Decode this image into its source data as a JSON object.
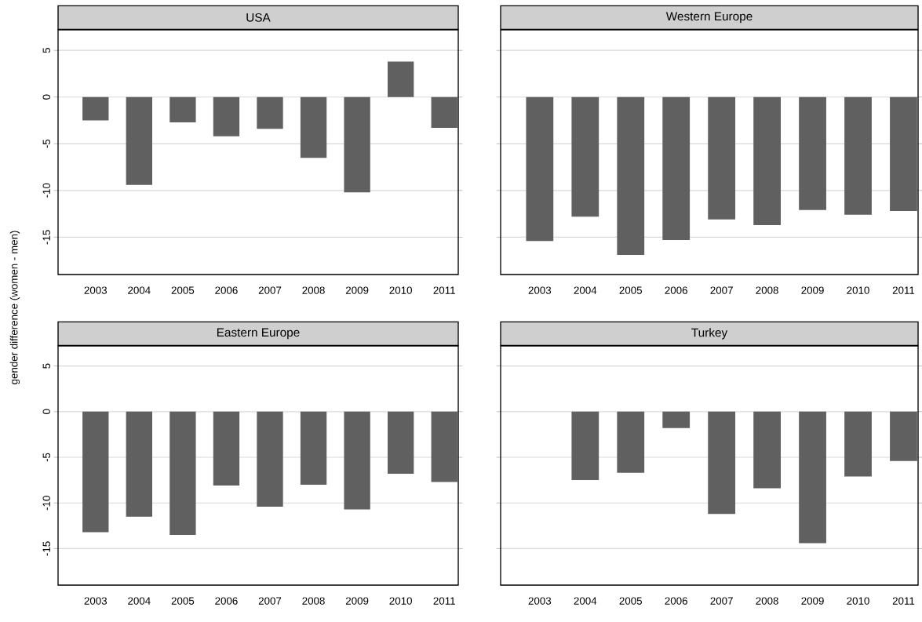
{
  "chart_data": [
    {
      "type": "bar",
      "title": "USA",
      "ylabel": "gender difference (women - men)",
      "categories": [
        "2003",
        "2004",
        "2005",
        "2006",
        "2007",
        "2008",
        "2009",
        "2010",
        "2011"
      ],
      "values": [
        -2.5,
        -9.4,
        -2.7,
        -4.2,
        -3.4,
        -6.5,
        -10.2,
        3.8,
        -3.3
      ],
      "color": "#606060",
      "ylim": [
        -19,
        7.2
      ],
      "yticks": [
        -15,
        -10,
        -5,
        0,
        5
      ],
      "grid": "y"
    },
    {
      "type": "bar",
      "title": "Western Europe",
      "categories": [
        "2003",
        "2004",
        "2005",
        "2006",
        "2007",
        "2008",
        "2009",
        "2010",
        "2011"
      ],
      "values": [
        -15.4,
        -12.8,
        -16.9,
        -15.3,
        -13.1,
        -13.7,
        -12.1,
        -12.6,
        -12.2
      ],
      "color": "#606060",
      "ylim": [
        -19,
        7.2
      ],
      "yticks": [
        -15,
        -10,
        -5,
        0,
        5
      ],
      "grid": "y",
      "tick_labels": "x"
    },
    {
      "type": "bar",
      "title": "Eastern Europe",
      "categories": [
        "2003",
        "2004",
        "2005",
        "2006",
        "2007",
        "2008",
        "2009",
        "2010",
        "2011"
      ],
      "values": [
        -13.2,
        -11.5,
        -13.5,
        -8.1,
        -10.4,
        -8.0,
        -10.7,
        -6.8,
        -7.7
      ],
      "color": "#606060",
      "ylim": [
        -19,
        7.2
      ],
      "yticks": [
        -15,
        -10,
        -5,
        0,
        5
      ],
      "grid": "y"
    },
    {
      "type": "bar",
      "title": "Turkey",
      "categories": [
        "2003",
        "2004",
        "2005",
        "2006",
        "2007",
        "2008",
        "2009",
        "2010",
        "2011"
      ],
      "values": [
        null,
        -7.5,
        -6.7,
        -1.8,
        -11.2,
        -8.4,
        -14.4,
        -7.1,
        -5.4
      ],
      "color": "#606060",
      "ylim": [
        -19,
        7.2
      ],
      "yticks": [
        -15,
        -10,
        -5,
        0,
        5
      ],
      "grid": "y",
      "tick_labels": "x"
    }
  ]
}
